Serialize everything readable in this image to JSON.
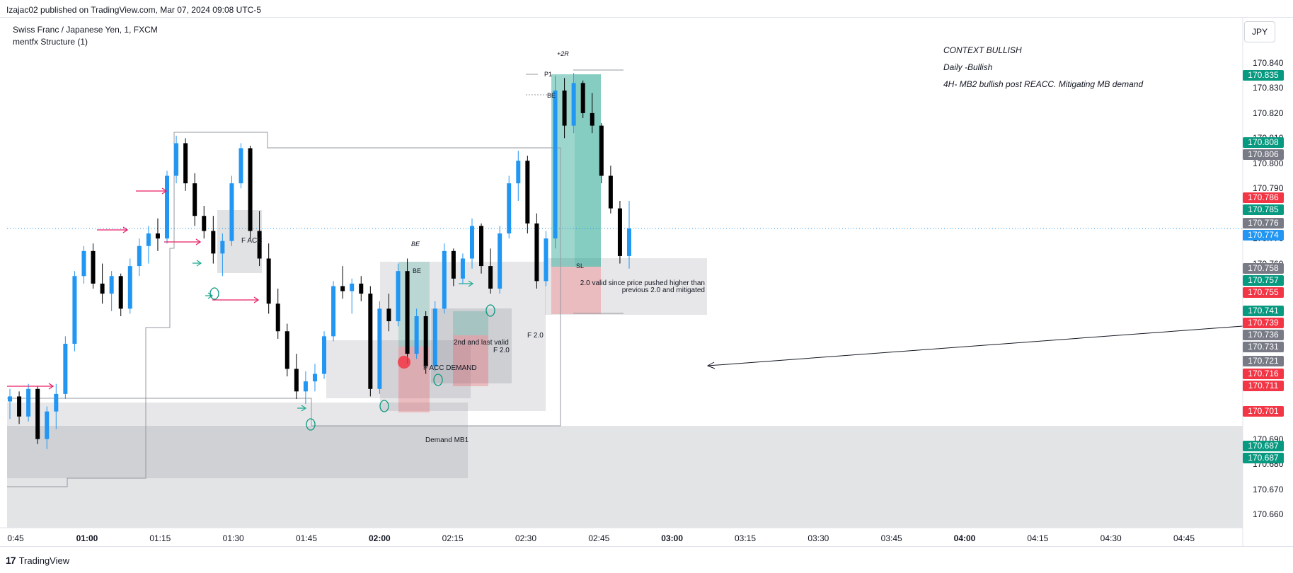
{
  "header": {
    "publish_line": "Izajac02 published on TradingView.com, Mar 07, 2024 09:08 UTC-5"
  },
  "legend": {
    "symbol_line": "Swiss Franc / Japanese Yen, 1, FXCM",
    "indicator_line": "mentfx Structure (1)"
  },
  "currency_button": "JPY",
  "footer": {
    "brand": "TradingView"
  },
  "context_notes": [
    "CONTEXT BULLISH",
    "Daily -Bullish",
    "4H- MB2 bullish post REACC. Mitigating MB demand"
  ],
  "annotations": {
    "plus2r": "+2R",
    "p1": "P1",
    "be_top": "BE",
    "be_left_italic": "BE",
    "be_small": "BE",
    "sl": "SL",
    "f_acc": "F ACC",
    "f_acc_demand": "F ACC DEMAND",
    "second_last_valid": "2nd and last valid",
    "f20_a": "F 2.0",
    "f20_b": "F 2.0",
    "demand_mb1": "Demand MB1",
    "note_valid_1": "2.0 valid since price pushed higher than",
    "note_valid_2": "previous 2.0 and mitigated"
  },
  "colors": {
    "up": "#2196f3",
    "down": "#000000",
    "green_badge": "#089981",
    "red_badge": "#f23645",
    "gray_badge": "#787b86",
    "blue_badge": "#2196f3",
    "arrow_pink": "#e91e63",
    "arrow_green": "#22ab94"
  },
  "chart_data": {
    "type": "candlestick",
    "symbol": "Swiss Franc / Japanese Yen, 1, FXCM",
    "price_axis": {
      "range": [
        170.655,
        170.845
      ],
      "ticks": [
        "170.840",
        "170.830",
        "170.820",
        "170.810",
        "170.800",
        "170.790",
        "170.770",
        "170.760",
        "170.690",
        "170.680",
        "170.670",
        "170.660"
      ]
    },
    "time_axis": {
      "ticks": [
        {
          "label": "0:45",
          "minute": -15,
          "bold": false
        },
        {
          "label": "01:00",
          "minute": 0,
          "bold": true
        },
        {
          "label": "01:15",
          "minute": 15,
          "bold": false
        },
        {
          "label": "01:30",
          "minute": 30,
          "bold": false
        },
        {
          "label": "01:45",
          "minute": 45,
          "bold": false
        },
        {
          "label": "02:00",
          "minute": 60,
          "bold": true
        },
        {
          "label": "02:15",
          "minute": 75,
          "bold": false
        },
        {
          "label": "02:30",
          "minute": 90,
          "bold": false
        },
        {
          "label": "02:45",
          "minute": 105,
          "bold": false
        },
        {
          "label": "03:00",
          "minute": 120,
          "bold": true
        },
        {
          "label": "03:15",
          "minute": 135,
          "bold": false
        },
        {
          "label": "03:30",
          "minute": 150,
          "bold": false
        },
        {
          "label": "03:45",
          "minute": 165,
          "bold": false
        },
        {
          "label": "04:00",
          "minute": 180,
          "bold": true
        },
        {
          "label": "04:15",
          "minute": 195,
          "bold": false
        },
        {
          "label": "04:30",
          "minute": 210,
          "bold": false
        },
        {
          "label": "04:45",
          "minute": 225,
          "bold": false
        }
      ]
    },
    "price_badges": [
      {
        "value": "170.835",
        "color": "green"
      },
      {
        "value": "170.808",
        "color": "green"
      },
      {
        "value": "170.806",
        "color": "gray"
      },
      {
        "value": "170.786",
        "color": "red"
      },
      {
        "value": "170.785",
        "color": "green"
      },
      {
        "value": "170.776",
        "color": "gray"
      },
      {
        "value": "170.774",
        "color": "blue"
      },
      {
        "value": "170.758",
        "color": "gray"
      },
      {
        "value": "170.757",
        "color": "green"
      },
      {
        "value": "170.755",
        "color": "red"
      },
      {
        "value": "170.741",
        "color": "green"
      },
      {
        "value": "170.739",
        "color": "red"
      },
      {
        "value": "170.736",
        "color": "gray"
      },
      {
        "value": "170.731",
        "color": "gray"
      },
      {
        "value": "170.721",
        "color": "gray"
      },
      {
        "value": "170.716",
        "color": "red"
      },
      {
        "value": "170.711",
        "color": "red"
      },
      {
        "value": "170.701",
        "color": "red"
      },
      {
        "value": "170.687",
        "color": "green"
      },
      {
        "value": "170.687",
        "color": "green"
      }
    ],
    "current_price": 170.774,
    "candles_ohlc": [
      [
        170.705,
        170.71,
        170.698,
        170.707
      ],
      [
        170.707,
        170.709,
        170.696,
        170.699
      ],
      [
        170.699,
        170.712,
        170.697,
        170.71
      ],
      [
        170.71,
        170.711,
        170.688,
        170.69
      ],
      [
        170.69,
        170.703,
        170.686,
        170.701
      ],
      [
        170.701,
        170.712,
        170.694,
        170.708
      ],
      [
        170.708,
        170.731,
        170.706,
        170.728
      ],
      [
        170.728,
        170.757,
        170.725,
        170.755
      ],
      [
        170.755,
        170.767,
        170.752,
        170.765
      ],
      [
        170.765,
        170.768,
        170.75,
        170.752
      ],
      [
        170.752,
        170.76,
        170.744,
        170.748
      ],
      [
        170.748,
        170.757,
        170.741,
        170.755
      ],
      [
        170.755,
        170.756,
        170.739,
        170.742
      ],
      [
        170.742,
        170.762,
        170.74,
        170.759
      ],
      [
        170.759,
        170.77,
        170.755,
        170.767
      ],
      [
        170.767,
        170.775,
        170.76,
        170.772
      ],
      [
        170.772,
        170.778,
        170.765,
        170.77
      ],
      [
        170.77,
        170.797,
        170.768,
        170.795
      ],
      [
        170.795,
        170.811,
        170.792,
        170.808
      ],
      [
        170.808,
        170.81,
        170.789,
        170.792
      ],
      [
        170.792,
        170.796,
        170.775,
        170.779
      ],
      [
        170.779,
        170.783,
        170.77,
        170.773
      ],
      [
        170.773,
        170.779,
        170.76,
        170.764
      ],
      [
        170.764,
        170.772,
        170.755,
        170.769
      ],
      [
        170.769,
        170.795,
        170.767,
        170.792
      ],
      [
        170.792,
        170.808,
        170.79,
        170.806
      ],
      [
        170.806,
        170.807,
        170.77,
        170.773
      ],
      [
        170.773,
        170.781,
        170.759,
        170.762
      ],
      [
        170.762,
        170.768,
        170.74,
        170.744
      ],
      [
        170.744,
        170.75,
        170.73,
        170.733
      ],
      [
        170.733,
        170.736,
        170.715,
        170.718
      ],
      [
        170.718,
        170.724,
        170.706,
        170.709
      ],
      [
        170.709,
        170.717,
        170.704,
        170.713
      ],
      [
        170.713,
        170.72,
        170.709,
        170.716
      ],
      [
        170.716,
        170.733,
        170.714,
        170.731
      ],
      [
        170.731,
        170.753,
        170.729,
        170.751
      ],
      [
        170.751,
        170.759,
        170.746,
        170.749
      ],
      [
        170.749,
        170.754,
        170.74,
        170.752
      ],
      [
        170.752,
        170.755,
        170.745,
        170.748
      ],
      [
        170.748,
        170.751,
        170.707,
        170.71
      ],
      [
        170.71,
        170.745,
        170.708,
        170.742
      ],
      [
        170.742,
        170.748,
        170.733,
        170.737
      ],
      [
        170.737,
        170.76,
        170.735,
        170.757
      ],
      [
        170.757,
        170.762,
        170.72,
        170.724
      ],
      [
        170.724,
        170.742,
        170.722,
        170.739
      ],
      [
        170.739,
        170.741,
        170.716,
        170.719
      ],
      [
        170.719,
        170.745,
        170.717,
        170.742
      ],
      [
        170.742,
        170.768,
        170.74,
        170.765
      ],
      [
        170.765,
        170.766,
        170.751,
        170.754
      ],
      [
        170.754,
        170.764,
        170.752,
        170.762
      ],
      [
        170.762,
        170.778,
        170.758,
        170.775
      ],
      [
        170.775,
        170.776,
        170.756,
        170.759
      ],
      [
        170.759,
        170.766,
        170.748,
        170.75
      ],
      [
        170.75,
        170.775,
        170.748,
        170.772
      ],
      [
        170.772,
        170.795,
        170.77,
        170.792
      ],
      [
        170.792,
        170.805,
        170.785,
        170.801
      ],
      [
        170.801,
        170.803,
        170.772,
        170.776
      ],
      [
        170.776,
        170.78,
        170.75,
        170.753
      ],
      [
        170.753,
        170.773,
        170.751,
        170.77
      ],
      [
        170.77,
        170.835,
        170.766,
        170.829
      ],
      [
        170.829,
        170.834,
        170.81,
        170.815
      ],
      [
        170.815,
        170.836,
        170.812,
        170.832
      ],
      [
        170.832,
        170.833,
        170.818,
        170.82
      ],
      [
        170.82,
        170.828,
        170.812,
        170.815
      ],
      [
        170.815,
        170.816,
        170.792,
        170.795
      ],
      [
        170.795,
        170.799,
        170.78,
        170.782
      ],
      [
        170.782,
        170.785,
        170.76,
        170.763
      ],
      [
        170.763,
        170.785,
        170.758,
        170.774
      ]
    ]
  }
}
